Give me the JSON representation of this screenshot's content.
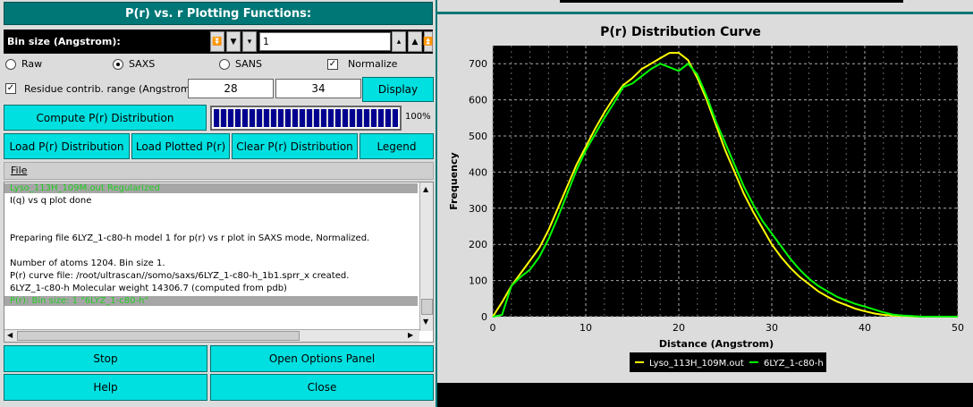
{
  "panel": {
    "title": "P(r) vs. r  Plotting Functions:",
    "bin_label": "Bin size (Angstrom):",
    "bin_value": "1",
    "radios": {
      "raw": "Raw",
      "saxs": "SAXS",
      "sans": "SANS"
    },
    "normalize": "Normalize",
    "residue_label": "Residue contrib.  range (Angstrom):",
    "range_from": "28",
    "range_to": "34",
    "display": "Display",
    "compute": "Compute P(r) Distribution",
    "progress": "100%",
    "progress_fraction": 1.0,
    "load_pr": "Load P(r) Distribution",
    "load_plotted": "Load Plotted P(r)",
    "clear_pr": "Clear P(r) Distribution",
    "legend": "Legend",
    "file_menu": "File",
    "stop": "Stop",
    "options": "Open Options Panel",
    "help": "Help",
    "close": "Close"
  },
  "log": [
    {
      "text": "Lyso_113H_109M.out Regularized",
      "color": "#22cc22",
      "hl": true
    },
    {
      "text": "I(q) vs q plot done",
      "color": "#000000",
      "hl": false
    },
    {
      "text": "",
      "color": "#000000",
      "hl": false
    },
    {
      "text": "",
      "color": "#000000",
      "hl": false
    },
    {
      "text": "Preparing file 6LYZ_1-c80-h model 1 for p(r) vs r plot in SAXS mode, Normalized.",
      "color": "#000000",
      "hl": false
    },
    {
      "text": "",
      "color": "#000000",
      "hl": false
    },
    {
      "text": "Number of atoms 1204. Bin size 1.",
      "color": "#000000",
      "hl": false
    },
    {
      "text": "P(r) curve file: /root/ultrascan//somo/saxs/6LYZ_1-c80-h_1b1.sprr_x created.",
      "color": "#000000",
      "hl": false
    },
    {
      "text": "6LYZ_1-c80-h Molecular weight 14306.7 (computed from pdb)",
      "color": "#000000",
      "hl": false
    },
    {
      "text": "P(r): Bin size: 1 \"6LYZ_1-c80-h\"",
      "color": "#22cc22",
      "hl": true
    }
  ],
  "chart_data": {
    "type": "line",
    "title": "P(r) Distribution Curve",
    "xlabel": "Distance (Angstrom)",
    "ylabel": "Frequency",
    "xlim": [
      0,
      50
    ],
    "ylim": [
      0,
      750
    ],
    "xticks": [
      0,
      10,
      20,
      30,
      40,
      50
    ],
    "yticks": [
      0,
      100,
      200,
      300,
      400,
      500,
      600,
      700
    ],
    "grid": true,
    "legend_position": "bottom",
    "series": [
      {
        "name": "Lyso_113H_109M.out",
        "color": "#ffff00",
        "x": [
          0,
          1,
          2,
          3,
          4,
          5,
          6,
          7,
          8,
          9,
          10,
          11,
          12,
          13,
          14,
          15,
          16,
          17,
          18,
          19,
          20,
          21,
          22,
          23,
          24,
          25,
          26,
          27,
          28,
          29,
          30,
          31,
          32,
          33,
          34,
          35,
          36,
          37,
          38,
          39,
          40,
          41,
          42,
          43,
          44,
          45,
          46,
          47,
          48,
          49,
          50
        ],
        "y": [
          0,
          40,
          85,
          120,
          155,
          190,
          240,
          300,
          360,
          420,
          470,
          520,
          565,
          605,
          640,
          660,
          685,
          700,
          715,
          730,
          730,
          710,
          660,
          600,
          530,
          460,
          400,
          340,
          290,
          245,
          200,
          165,
          135,
          110,
          90,
          70,
          55,
          42,
          32,
          22,
          15,
          9,
          5,
          3,
          2,
          1,
          0,
          0,
          0,
          0,
          0
        ]
      },
      {
        "name": "6LYZ_1-c80-h",
        "color": "#00ff00",
        "x": [
          0,
          1,
          2,
          3,
          4,
          5,
          6,
          7,
          8,
          9,
          10,
          11,
          12,
          13,
          14,
          15,
          16,
          17,
          18,
          19,
          20,
          21,
          22,
          23,
          24,
          25,
          26,
          27,
          28,
          29,
          30,
          31,
          32,
          33,
          34,
          35,
          36,
          37,
          38,
          39,
          40,
          41,
          42,
          43,
          44,
          45,
          46,
          47,
          48,
          49,
          50
        ],
        "y": [
          0,
          5,
          85,
          110,
          130,
          165,
          215,
          275,
          340,
          405,
          460,
          505,
          550,
          590,
          635,
          645,
          665,
          685,
          700,
          690,
          680,
          700,
          670,
          610,
          540,
          480,
          420,
          360,
          310,
          265,
          230,
          195,
          160,
          130,
          105,
          85,
          70,
          55,
          45,
          35,
          28,
          20,
          12,
          6,
          3,
          2,
          0,
          0,
          0,
          0,
          0
        ]
      }
    ]
  }
}
